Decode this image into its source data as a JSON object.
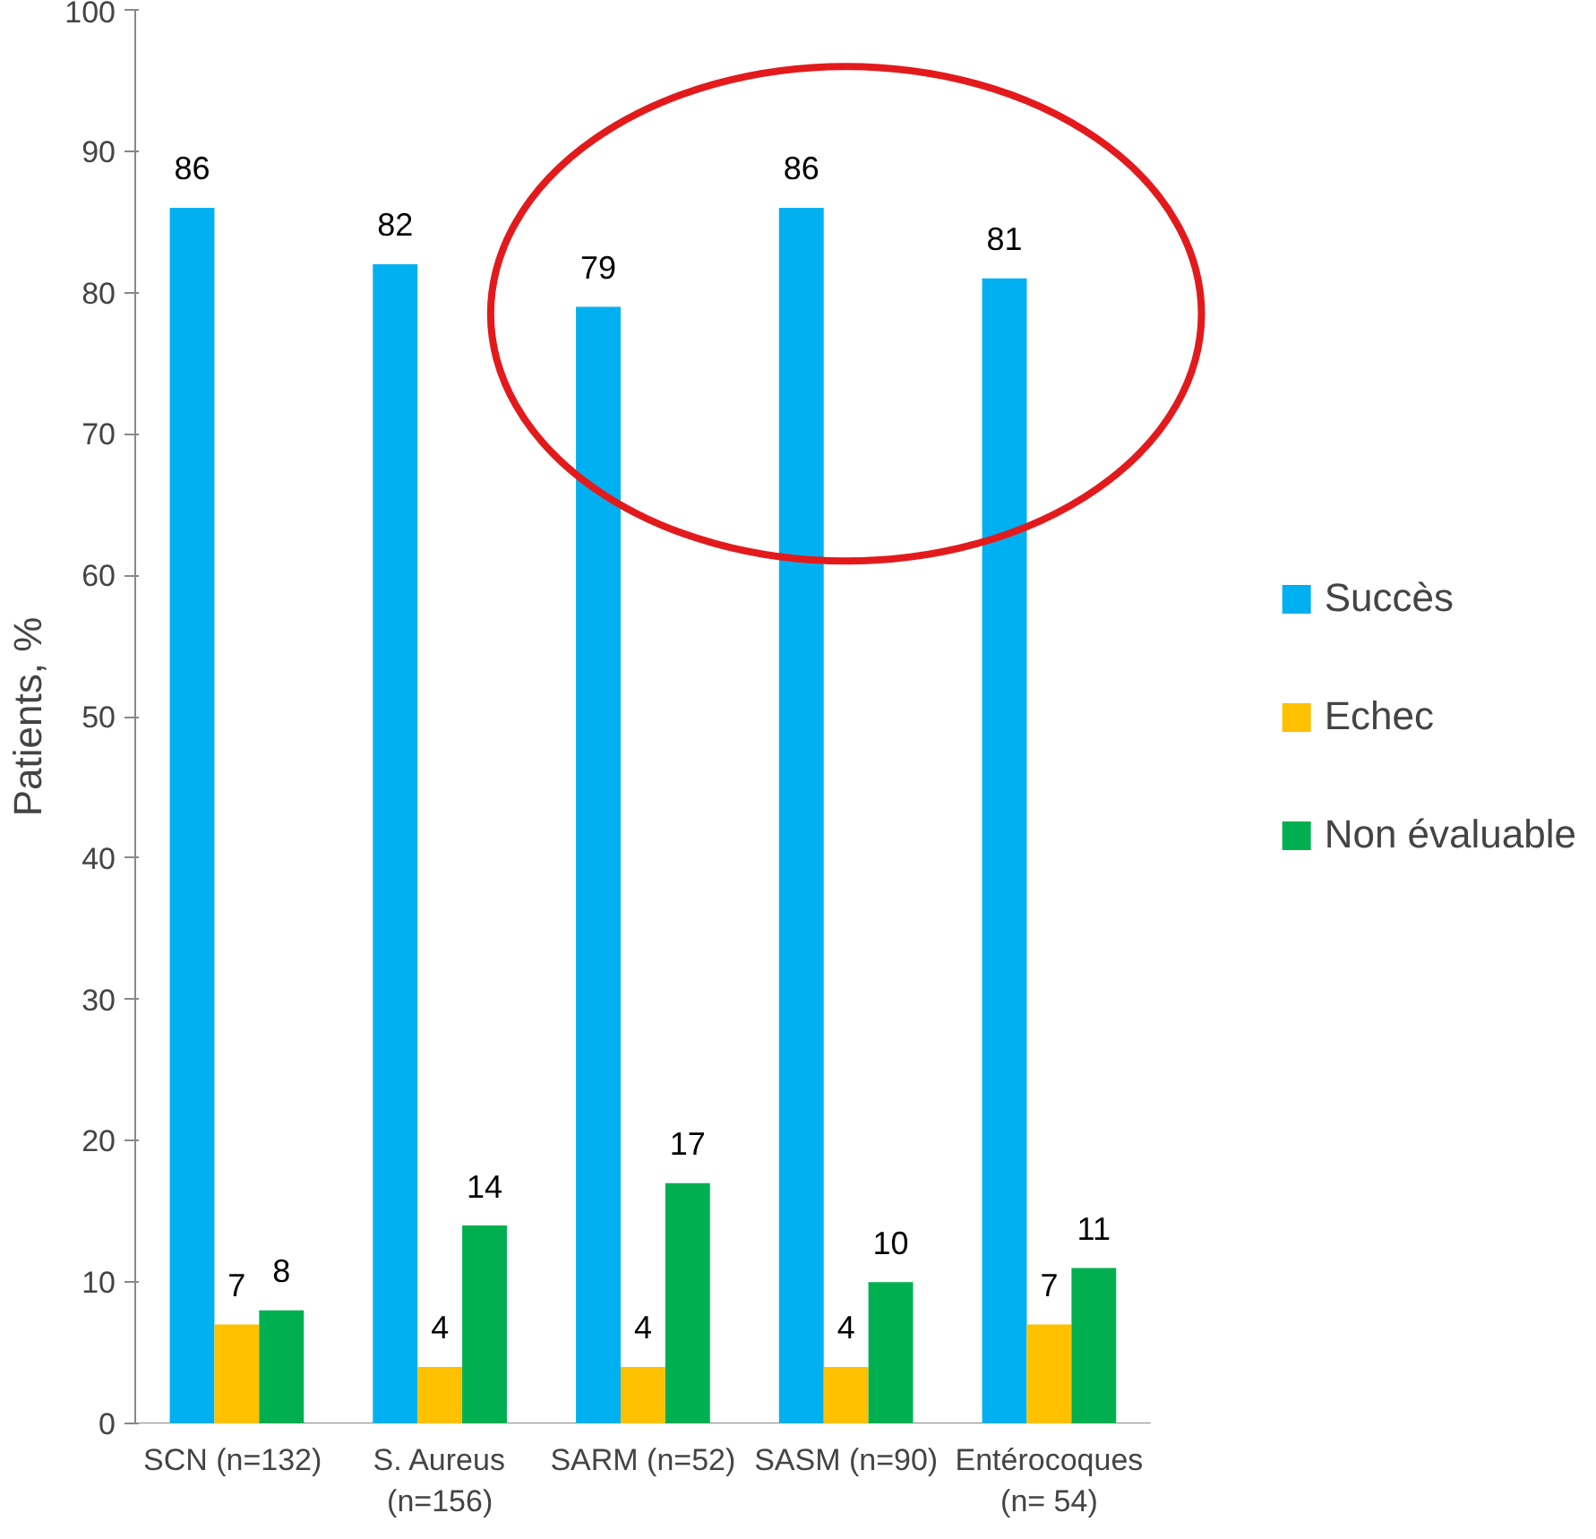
{
  "chart_data": {
    "type": "bar",
    "ylabel": "Patients, %",
    "categories": [
      "SCN  (n=132)",
      "S. Aureus\n(n=156)",
      "SARM (n=52)",
      "SASM (n=90)",
      "Entérocoques\n(n= 54)"
    ],
    "series": [
      {
        "name": "Succès",
        "color": "#00b0f0",
        "values": [
          86,
          82,
          79,
          86,
          81
        ]
      },
      {
        "name": "Echec",
        "color": "#ffc000",
        "values": [
          7,
          4,
          4,
          4,
          7
        ]
      },
      {
        "name": "Non évaluable",
        "color": "#00b050",
        "values": [
          8,
          14,
          17,
          10,
          11
        ]
      }
    ],
    "ylim": [
      0,
      100
    ],
    "yticks": [
      0,
      10,
      20,
      30,
      40,
      50,
      60,
      70,
      80,
      90,
      100
    ],
    "grid": false,
    "legend": "right",
    "data_labels": true
  }
}
